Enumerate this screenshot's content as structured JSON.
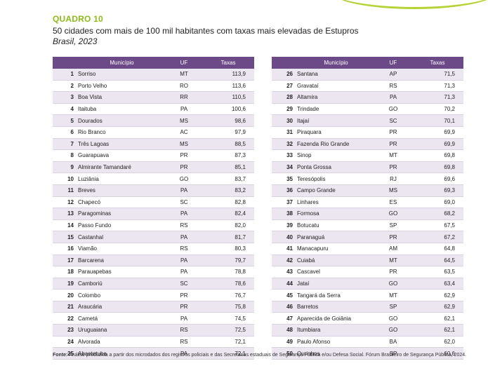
{
  "quadro": {
    "label": "QUADRO 10",
    "title": "50 cidades com mais de 100 mil habitantes com taxas mais elevadas de Estupros",
    "subtitle": "Brasil, 2023"
  },
  "headers": {
    "municipio": "Município",
    "uf": "UF",
    "taxas": "Taxas"
  },
  "rows_left": [
    {
      "n": "1",
      "mun": "Sorriso",
      "uf": "MT",
      "tax": "113,9"
    },
    {
      "n": "2",
      "mun": "Porto Velho",
      "uf": "RO",
      "tax": "113,6"
    },
    {
      "n": "3",
      "mun": "Boa Vista",
      "uf": "RR",
      "tax": "110,5"
    },
    {
      "n": "4",
      "mun": "Itaituba",
      "uf": "PA",
      "tax": "100,6"
    },
    {
      "n": "5",
      "mun": "Dourados",
      "uf": "MS",
      "tax": "98,6"
    },
    {
      "n": "6",
      "mun": "Rio Branco",
      "uf": "AC",
      "tax": "97,9"
    },
    {
      "n": "7",
      "mun": "Três Lagoas",
      "uf": "MS",
      "tax": "88,5"
    },
    {
      "n": "8",
      "mun": "Guarapuava",
      "uf": "PR",
      "tax": "87,3"
    },
    {
      "n": "9",
      "mun": "Almirante Tamandaré",
      "uf": "PR",
      "tax": "85,1"
    },
    {
      "n": "10",
      "mun": "Luziânia",
      "uf": "GO",
      "tax": "83,7"
    },
    {
      "n": "11",
      "mun": "Breves",
      "uf": "PA",
      "tax": "83,2"
    },
    {
      "n": "12",
      "mun": "Chapecó",
      "uf": "SC",
      "tax": "82,8"
    },
    {
      "n": "13",
      "mun": "Paragominas",
      "uf": "PA",
      "tax": "82,4"
    },
    {
      "n": "14",
      "mun": "Passo Fundo",
      "uf": "RS",
      "tax": "82,0"
    },
    {
      "n": "15",
      "mun": "Castanhal",
      "uf": "PA",
      "tax": "81,7"
    },
    {
      "n": "16",
      "mun": "Viamão",
      "uf": "RS",
      "tax": "80,3"
    },
    {
      "n": "17",
      "mun": "Barcarena",
      "uf": "PA",
      "tax": "79,7"
    },
    {
      "n": "18",
      "mun": "Parauapebas",
      "uf": "PA",
      "tax": "78,8"
    },
    {
      "n": "19",
      "mun": "Camboriú",
      "uf": "SC",
      "tax": "78,6"
    },
    {
      "n": "20",
      "mun": "Colombo",
      "uf": "PR",
      "tax": "76,7"
    },
    {
      "n": "21",
      "mun": "Araucária",
      "uf": "PR",
      "tax": "75,8"
    },
    {
      "n": "22",
      "mun": "Cametá",
      "uf": "PA",
      "tax": "74,5"
    },
    {
      "n": "23",
      "mun": "Uruguaiana",
      "uf": "RS",
      "tax": "72,5"
    },
    {
      "n": "24",
      "mun": "Alvorada",
      "uf": "RS",
      "tax": "72,1"
    },
    {
      "n": "25",
      "mun": "Abaetetuba",
      "uf": "PA",
      "tax": "72,1"
    }
  ],
  "rows_right": [
    {
      "n": "26",
      "mun": "Santana",
      "uf": "AP",
      "tax": "71,5"
    },
    {
      "n": "27",
      "mun": "Gravataí",
      "uf": "RS",
      "tax": "71,3"
    },
    {
      "n": "28",
      "mun": "Altamira",
      "uf": "PA",
      "tax": "71,3"
    },
    {
      "n": "29",
      "mun": "Trindade",
      "uf": "GO",
      "tax": "70,2"
    },
    {
      "n": "30",
      "mun": "Itajaí",
      "uf": "SC",
      "tax": "70,1"
    },
    {
      "n": "31",
      "mun": "Piraquara",
      "uf": "PR",
      "tax": "69,9"
    },
    {
      "n": "32",
      "mun": "Fazenda Rio Grande",
      "uf": "PR",
      "tax": "69,9"
    },
    {
      "n": "33",
      "mun": "Sinop",
      "uf": "MT",
      "tax": "69,8"
    },
    {
      "n": "34",
      "mun": "Ponta Grossa",
      "uf": "PR",
      "tax": "69,8"
    },
    {
      "n": "35",
      "mun": "Teresópolis",
      "uf": "RJ",
      "tax": "69,6"
    },
    {
      "n": "36",
      "mun": "Campo Grande",
      "uf": "MS",
      "tax": "69,3"
    },
    {
      "n": "37",
      "mun": "Linhares",
      "uf": "ES",
      "tax": "69,0"
    },
    {
      "n": "38",
      "mun": "Formosa",
      "uf": "GO",
      "tax": "68,2"
    },
    {
      "n": "39",
      "mun": "Botucatu",
      "uf": "SP",
      "tax": "67,5"
    },
    {
      "n": "40",
      "mun": "Paranaguá",
      "uf": "PR",
      "tax": "67,2"
    },
    {
      "n": "41",
      "mun": "Manacapuru",
      "uf": "AM",
      "tax": "64,8"
    },
    {
      "n": "42",
      "mun": "Cuiabá",
      "uf": "MT",
      "tax": "64,5"
    },
    {
      "n": "43",
      "mun": "Cascavel",
      "uf": "PR",
      "tax": "63,5"
    },
    {
      "n": "44",
      "mun": "Jataí",
      "uf": "GO",
      "tax": "63,4"
    },
    {
      "n": "45",
      "mun": "Tangará da Serra",
      "uf": "MT",
      "tax": "62,9"
    },
    {
      "n": "46",
      "mun": "Barretos",
      "uf": "SP",
      "tax": "62,9"
    },
    {
      "n": "47",
      "mun": "Aparecida de Goiânia",
      "uf": "GO",
      "tax": "62,1"
    },
    {
      "n": "48",
      "mun": "Itumbiara",
      "uf": "GO",
      "tax": "62,1"
    },
    {
      "n": "49",
      "mun": "Paulo Afonso",
      "uf": "BA",
      "tax": "62,0"
    },
    {
      "n": "50",
      "mun": "Ourinhos",
      "uf": "SP",
      "tax": "60,6"
    }
  ],
  "footer": {
    "label": "Fonte:",
    "text": "Análise produzida a partir dos microdados dos registros policiais e das Secretarias estaduais de Segurança Pública e/ou Defesa Social. Fórum Brasileiro de Segurança Pública, 2024."
  },
  "colors": {
    "accent_green": "#8dbb1e",
    "header_purple": "#6b4a87",
    "row_stripe": "#ebe6f0"
  }
}
